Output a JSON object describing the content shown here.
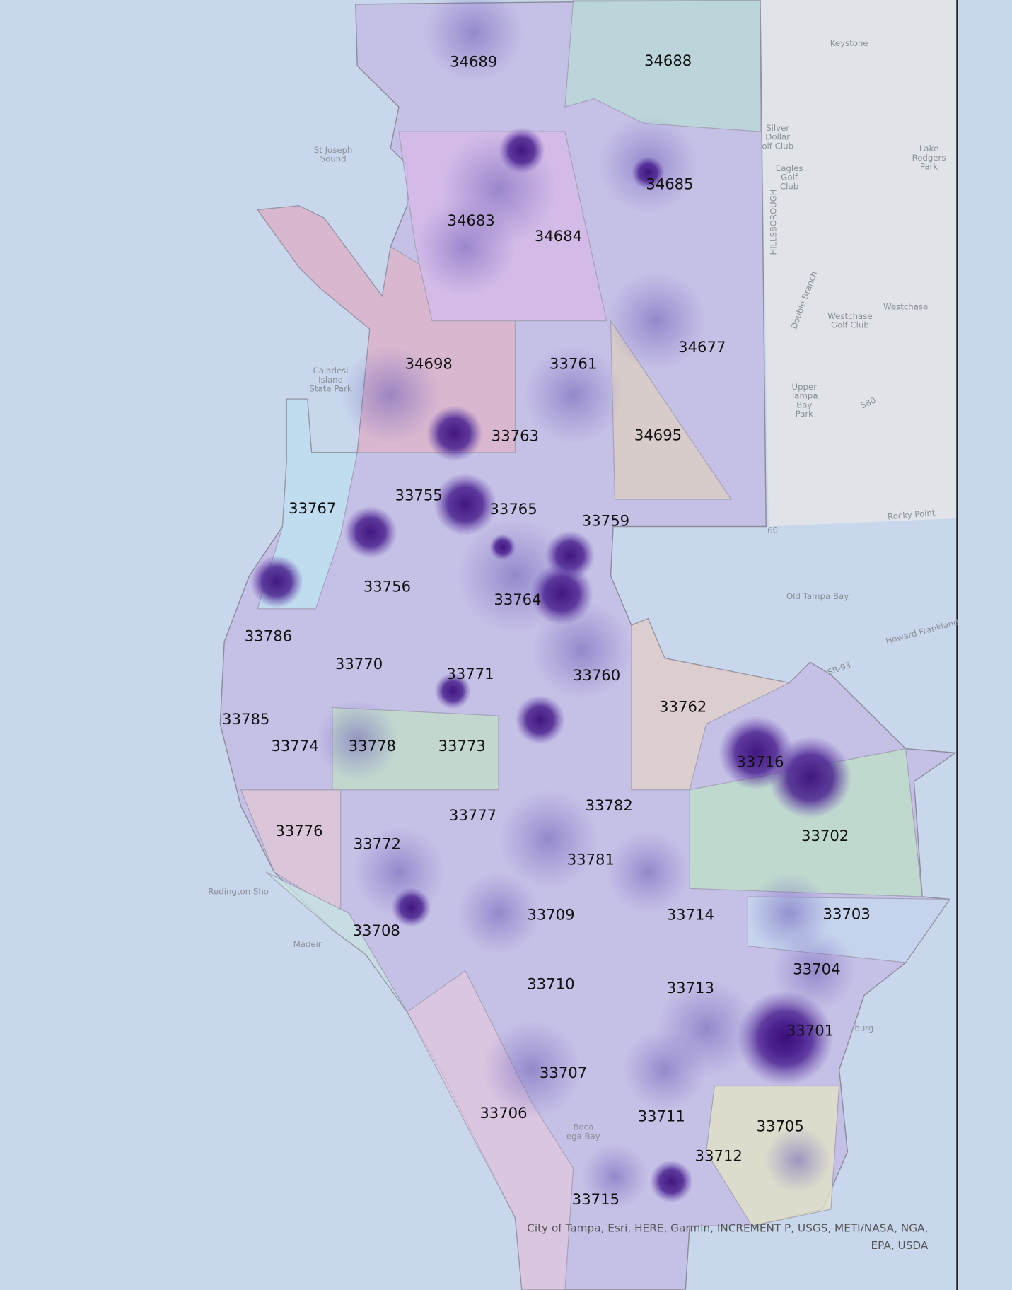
{
  "zip_codes": [
    "34689",
    "34688",
    "34685",
    "34683",
    "34684",
    "34677",
    "34698",
    "33761",
    "33763",
    "34695",
    "33755",
    "33767",
    "33765",
    "33759",
    "33756",
    "33764",
    "33786",
    "33770",
    "33771",
    "33760",
    "33762",
    "33785",
    "33774",
    "33778",
    "33773",
    "33716",
    "33782",
    "33777",
    "33702",
    "33776",
    "33772",
    "33781",
    "33709",
    "33714",
    "33703",
    "33708",
    "33704",
    "33710",
    "33713",
    "33701",
    "33707",
    "33706",
    "33711",
    "33705",
    "33712",
    "33715"
  ],
  "places": [
    {
      "lines": [
        "Keystone"
      ]
    },
    {
      "lines": [
        "St Joseph",
        "Sound"
      ]
    },
    {
      "lines": [
        "Silver",
        "Dollar",
        "olf Club"
      ]
    },
    {
      "lines": [
        "Eagles",
        "Golf",
        "Club"
      ]
    },
    {
      "lines": [
        "Lake",
        "Rodgers",
        "Park"
      ]
    },
    {
      "lines": [
        "HILLSBOROUGH"
      ]
    },
    {
      "lines": [
        "Double Branch"
      ]
    },
    {
      "lines": [
        "Westchase"
      ]
    },
    {
      "lines": [
        "Westchase",
        "Golf Club"
      ]
    },
    {
      "lines": [
        "Caladesi",
        "Island",
        "State Park"
      ]
    },
    {
      "lines": [
        "Upper",
        "Tampa",
        "Bay",
        "Park"
      ]
    },
    {
      "lines": [
        "580"
      ]
    },
    {
      "lines": [
        "Rocky Point"
      ]
    },
    {
      "lines": [
        "60"
      ]
    },
    {
      "lines": [
        "Old Tampa Bay"
      ]
    },
    {
      "lines": [
        "Howard Frankland"
      ]
    },
    {
      "lines": [
        "SR-93"
      ]
    },
    {
      "lines": [
        "Redington Sho"
      ]
    },
    {
      "lines": [
        "Madeir"
      ]
    },
    {
      "lines": [
        "burg"
      ]
    },
    {
      "lines": [
        "Boca",
        "ega Bay"
      ]
    }
  ],
  "attribution": [
    "City of Tampa, Esri, HERE, Garmin, INCREMENT P, USGS, METI/NASA, NGA,",
    "EPA, USDA"
  ]
}
